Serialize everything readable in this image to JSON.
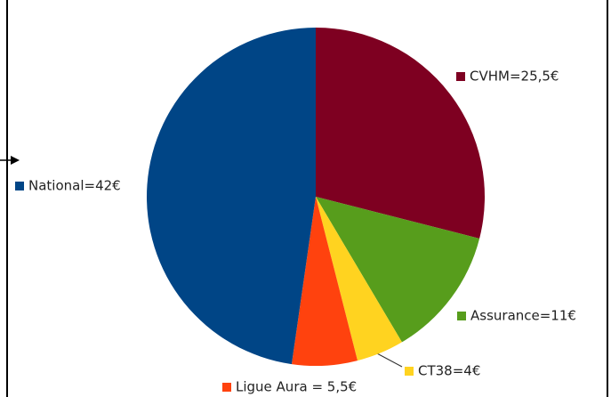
{
  "chart_data": {
    "type": "pie",
    "values": [
      25.5,
      11,
      4,
      5.5,
      42
    ],
    "value_labels": [
      "CVHM=25,5€",
      "Assurance=11€",
      "CT38=4€",
      "Ligue Aura = 5,5€",
      "National=42€"
    ],
    "colors": [
      "#7e0021",
      "#579d1c",
      "#ffd320",
      "#ff420e",
      "#004586"
    ]
  }
}
